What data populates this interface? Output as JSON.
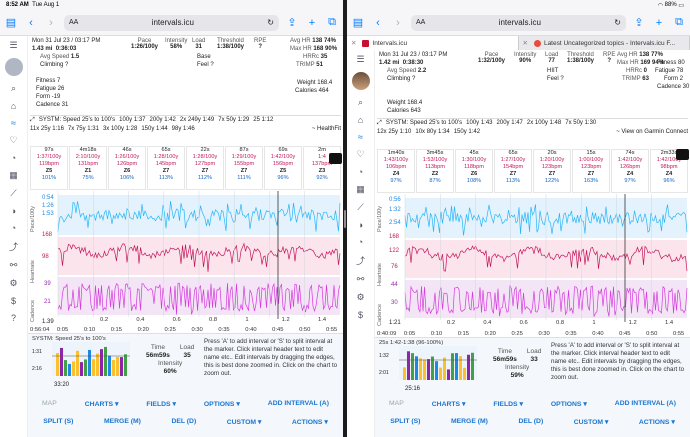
{
  "left": {
    "status": {
      "time": "8:52 AM",
      "date": "Tue Aug 1"
    },
    "url": "intervals.icu",
    "aa": "AA",
    "stats": {
      "date": "Mon 31 Jul 23 / 03:17 PM",
      "dist": "1.43 mi",
      "dist_unit": "✓",
      "time": "0:36:03",
      "avg_speed_l": "Avg Speed",
      "avg_speed": "1.5",
      "climbing": "Climbing ?",
      "pace_l": "Pace",
      "pace": "1:26/100y",
      "int_l": "Intensity",
      "int": "58%",
      "load_l": "Load",
      "load": "31",
      "thr_l": "Threshold",
      "thr": "1:38/100y",
      "rpe_l": "RPE",
      "rpe": "?",
      "base": "Base",
      "feel": "Feel ?",
      "avghr_l": "Avg HR",
      "avghr": "138",
      "avghr_p": "74%",
      "maxhr_l": "Max HR",
      "maxhr": "168",
      "maxhr_p": "90%",
      "hrrc_l": "HRRc",
      "hrrc": "35",
      "trimp_l": "TRIMP",
      "trimp": "51",
      "fitness": "Fitness 7",
      "fatigue": "Fatigue 26",
      "form": "Form -19",
      "cadence": "Cadence 31",
      "weight": "Weight 168.4",
      "calories": "Calories 464"
    },
    "intv": {
      "desc": "SYSTM: Speed 25's to 100's",
      "row1": [
        "100y 1:37",
        "200y 1:42",
        "2x 249y 1:49",
        "7x 50y 1:29",
        "25 1:12"
      ],
      "row2": [
        "11x 25y 1:16",
        "7x 75y 1:31",
        "3x 100y 1:28",
        "150y 1:44",
        "98y 1:46"
      ],
      "src": "~ HealthFit"
    },
    "blocks": [
      {
        "t": "97s",
        "p": "1:37/100y",
        "hr": "119bpm",
        "z": "Z5",
        "pct": "101%"
      },
      {
        "t": "4m18s",
        "p": "2:10/100y",
        "hr": "131bpm",
        "z": "Z1",
        "pct": "75%"
      },
      {
        "t": "46s",
        "p": "1:26/100y",
        "hr": "126bpm",
        "z": "Z6",
        "pct": "106%"
      },
      {
        "t": "65s",
        "p": "1:28/100y",
        "hr": "145bpm",
        "z": "Z7",
        "pct": "113%"
      },
      {
        "t": "22s",
        "p": "1:28/100y",
        "hr": "127bpm",
        "z": "Z7",
        "pct": "112%"
      },
      {
        "t": "87s",
        "p": "1:29/100y",
        "hr": "155bpm",
        "z": "Z7",
        "pct": "111%"
      },
      {
        "t": "69s",
        "p": "1:42/100y",
        "hr": "156bpm",
        "z": "Z5",
        "pct": "96%"
      },
      {
        "t": "2m",
        "p": "1:4",
        "hr": "137bpm",
        "z": "Z3",
        "pct": "92%"
      }
    ],
    "axis": {
      "pace": "Pace/100y",
      "hr": "Heartrate",
      "cad": "Cadence"
    },
    "yt": {
      "p1": "0:54",
      "p2": "1:26",
      "p3": "1:53",
      "h1": "168",
      "h2": "98",
      "c1": "39",
      "c2": "21",
      "c3": "1.39"
    },
    "xt": [
      "0:56:04",
      "0:05",
      "0:10",
      "0:15",
      "0:20",
      "0:25",
      "0:30",
      "0:35",
      "0:40",
      "0:45",
      "0:50",
      "0:55"
    ],
    "extra": [
      "0.2",
      "0.4",
      "0.6",
      "0.8",
      "1",
      "1.2",
      "1.4"
    ],
    "mini": {
      "cap": "SYSTM: Speed 25's to 100's",
      "y1": "1:31",
      "y2": "2:16",
      "x": "33:20",
      "lbl": "Pace/100y"
    },
    "info": {
      "time_l": "Time",
      "time": "56m59s",
      "load_l": "Load",
      "load": "35",
      "int_l": "Intensity",
      "int": "60%"
    },
    "help": "Press 'A' to add interval or 'S' to split interval at the marker. Click interval header text to edit name etc.. Edit intervals by dragging the edges, this is best done zoomed in. Click on the chart to zoom out.",
    "btn1": [
      "MAP",
      "CHARTS ▾",
      "FIELDS ▾",
      "OPTIONS ▾",
      "ADD INTERVAL (A)"
    ],
    "btn2": [
      "SPLIT (S)",
      "MERGE (M)",
      "DEL (D)",
      "CUSTOM ▾",
      "ACTIONS ▾"
    ]
  },
  "right": {
    "status": {
      "battery": "88%"
    },
    "url": "intervals.icu",
    "aa": "AA",
    "tabs": [
      "Intervals.icu",
      "Latest Uncategorized topics - Intervals.icu F..."
    ],
    "stats": {
      "date": "Mon 31 Jul 23 / 03:17 PM",
      "dist": "1.42 mi",
      "time": "0:38:30",
      "avg_speed_l": "Avg Speed",
      "avg_speed": "2.2",
      "climbing": "Climbing ?",
      "pace_l": "Pace",
      "pace": "1:32/100y",
      "int_l": "Intensity",
      "int": "90%",
      "load_l": "Load",
      "load": "77",
      "hiit": "HIIT",
      "feel": "Feel ?",
      "thr_l": "Threshold",
      "thr": "1:38/100y",
      "rpe_l": "RPE",
      "rpe": "?",
      "avghr_l": "Avg HR",
      "avghr": "138",
      "avghr_p": "77%",
      "maxhr_l": "Max HR",
      "maxhr": "169",
      "maxhr_p": "94%",
      "hrrc_l": "HRRc",
      "hrrc": "0",
      "trimp_l": "TRIMP",
      "trimp": "63",
      "fitness": "Fitness 80",
      "fatigue": "Fatigue 78",
      "form": "Form 2",
      "cadence": "Cadence 30",
      "weight": "Weight 168.4",
      "calories": "Calories 643"
    },
    "intv": {
      "desc": "SYSTM: Speed 25's to 100's",
      "row1": [
        "100y 1:43",
        "200y 1:47",
        "2x 100y 1:48",
        "7x 50y 1:30"
      ],
      "row2": [
        "12x 25y 1:10",
        "10x 80y 1:34",
        "150y 1:42"
      ],
      "src": "~ View on Garmin Connect"
    },
    "blocks": [
      {
        "t": "1m40s",
        "p": "1:43/100y",
        "hr": "106bpm",
        "z": "Z4",
        "pct": "97%"
      },
      {
        "t": "3m45s",
        "p": "1:53/100y",
        "hr": "113bpm",
        "z": "Z2",
        "pct": "87%"
      },
      {
        "t": "45s",
        "p": "1:30/100y",
        "hr": "118bpm",
        "z": "Z6",
        "pct": "108%"
      },
      {
        "t": "65s",
        "p": "1:27/100y",
        "hr": "154bpm",
        "z": "Z7",
        "pct": "113%"
      },
      {
        "t": "20s",
        "p": "1:20/100y",
        "hr": "123bpm",
        "z": "Z7",
        "pct": "122%"
      },
      {
        "t": "15s",
        "p": "1:00/100y",
        "hr": "123bpm",
        "z": "Z7",
        "pct": "163%"
      },
      {
        "t": "74s",
        "p": "1:42/100y",
        "hr": "126bpm",
        "z": "Z4",
        "pct": "97%"
      },
      {
        "t": "2m33s",
        "p": "1:42/100y",
        "hr": "98bpm",
        "z": "Z4",
        "pct": "96%"
      }
    ],
    "axis": {
      "pace": "Pace/100y",
      "hr": "Heartrate",
      "cad": "Cadence"
    },
    "yt": {
      "p1": "0:56",
      "p2": "1:32",
      "p3": "2:54",
      "h1": "168",
      "h2": "122",
      "h3": "76",
      "c1": "44",
      "c2": "30",
      "c3": "1:21"
    },
    "xt": [
      "0:40:09",
      "0:05",
      "0:10",
      "0:15",
      "0:20",
      "0:25",
      "0:30",
      "0:35",
      "0:40",
      "0:45",
      "0:50",
      "0:55"
    ],
    "extra": [
      "0.2",
      "0.4",
      "0.6",
      "0.8",
      "1",
      "1.2",
      "1.4"
    ],
    "mini": {
      "cap": "25s 1:42-1:38 (96-100%)",
      "y1": "1:32",
      "y2": "2:01",
      "x": "25:16",
      "lbl": "Pace/100y"
    },
    "info": {
      "time_l": "Time",
      "time": "56m59s",
      "load_l": "Load",
      "load": "33",
      "int_l": "Intensity",
      "int": "59%"
    },
    "help": "Press 'A' to add interval or 'S' to split interval at the marker. Click interval header text to edit name etc.. Edit intervals by dragging the edges, this is best done zoomed in. Click on the chart to zoom out.",
    "btn1": [
      "MAP",
      "CHARTS ▾",
      "FIELDS ▾",
      "OPTIONS ▾",
      "ADD INTERVAL (A)"
    ],
    "btn2": [
      "SPLIT (S)",
      "MERGE (M)",
      "DEL (D)",
      "CUSTOM ▾",
      "ACTIONS ▾"
    ]
  }
}
